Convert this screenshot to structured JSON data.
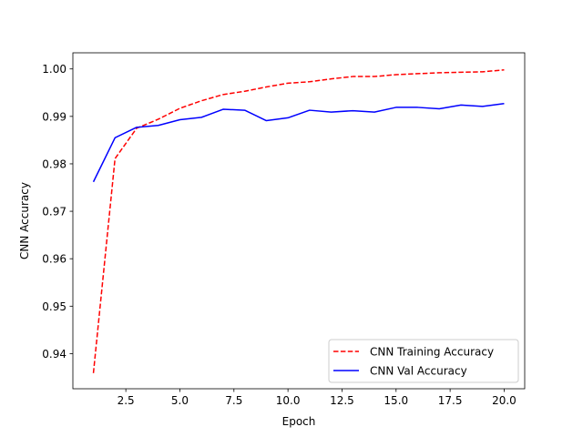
{
  "chart_data": {
    "type": "line",
    "title": "",
    "xlabel": "Epoch",
    "ylabel": "CNN Accuracy",
    "xlim": [
      0.05,
      20.95
    ],
    "ylim": [
      0.9326,
      1.0034
    ],
    "grid": false,
    "legend_position": "lower-right",
    "x_ticks": [
      2.5,
      5.0,
      7.5,
      10.0,
      12.5,
      15.0,
      17.5,
      20.0
    ],
    "x_tick_labels": [
      "2.5",
      "5.0",
      "7.5",
      "10.0",
      "12.5",
      "15.0",
      "17.5",
      "20.0"
    ],
    "y_ticks": [
      0.94,
      0.95,
      0.96,
      0.97,
      0.98,
      0.99,
      1.0
    ],
    "y_tick_labels": [
      "0.94",
      "0.95",
      "0.96",
      "0.97",
      "0.98",
      "0.99",
      "1.00"
    ],
    "x": [
      1,
      2,
      3,
      4,
      5,
      6,
      7,
      8,
      9,
      10,
      11,
      12,
      13,
      14,
      15,
      16,
      17,
      18,
      19,
      20
    ],
    "series": [
      {
        "name": "CNN Training Accuracy",
        "color": "#ff0000",
        "style": "dashed",
        "values": [
          0.9359,
          0.9811,
          0.9875,
          0.9894,
          0.9917,
          0.9933,
          0.9946,
          0.9953,
          0.9962,
          0.997,
          0.9973,
          0.9979,
          0.9984,
          0.9984,
          0.9988,
          0.999,
          0.9992,
          0.9993,
          0.9994,
          0.9998
        ]
      },
      {
        "name": "CNN Val Accuracy",
        "color": "#0000ff",
        "style": "solid",
        "values": [
          0.9762,
          0.9855,
          0.9877,
          0.9881,
          0.9893,
          0.9898,
          0.9915,
          0.9913,
          0.9891,
          0.9897,
          0.9913,
          0.9909,
          0.9912,
          0.9909,
          0.9919,
          0.9919,
          0.9916,
          0.9924,
          0.9921,
          0.9927
        ]
      }
    ]
  }
}
